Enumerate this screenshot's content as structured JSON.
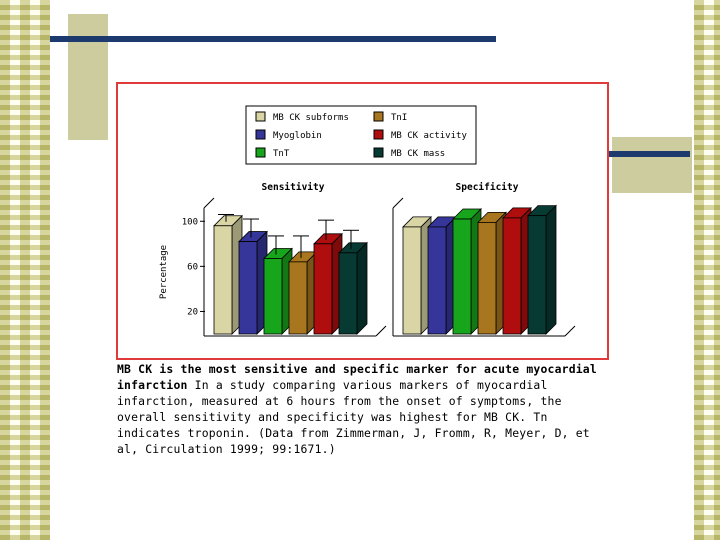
{
  "slide": {
    "caption_title": "MB CK is the most sensitive and specific marker for acute myocardial infarction",
    "caption_body": "In a study comparing various markers of myocardial infarction, measured at 6 hours from the onset of symptoms, the overall sensitivity and specificity was highest for MB CK. Tn indicates troponin. (Data from Zimmerman, J, Fromm, R, Meyer, D, et al, Circulation 1999; 99:1671.)"
  },
  "chart_data": {
    "type": "bar",
    "ylabel": "Percentage",
    "y_ticks": [
      20,
      60,
      100
    ],
    "ylim": [
      0,
      110
    ],
    "legend_position": "top-center",
    "series": [
      {
        "name": "MB CK subforms",
        "color": "#d9d5a5"
      },
      {
        "name": "TnI",
        "color": "#a7761e"
      },
      {
        "name": "Myoglobin",
        "color": "#36369a"
      },
      {
        "name": "MB CK activity",
        "color": "#b00e0e"
      },
      {
        "name": "TnT",
        "color": "#17a61b"
      },
      {
        "name": "MB CK mass",
        "color": "#073a33"
      }
    ],
    "groups": [
      {
        "label": "Sensitivity",
        "bars": [
          {
            "series": "MB CK subforms",
            "value": 96,
            "error": 10
          },
          {
            "series": "Myoglobin",
            "value": 82,
            "error": 20
          },
          {
            "series": "TnT",
            "value": 67,
            "error": 20
          },
          {
            "series": "TnI",
            "value": 64,
            "error": 23
          },
          {
            "series": "MB CK activity",
            "value": 80,
            "error": 21
          },
          {
            "series": "MB CK mass",
            "value": 72,
            "error": 20
          }
        ]
      },
      {
        "label": "Specificity",
        "bars": [
          {
            "series": "MB CK subforms",
            "value": 95
          },
          {
            "series": "Myoglobin",
            "value": 95
          },
          {
            "series": "TnT",
            "value": 102
          },
          {
            "series": "TnI",
            "value": 99
          },
          {
            "series": "MB CK activity",
            "value": 103
          },
          {
            "series": "MB CK mass",
            "value": 105
          }
        ]
      }
    ]
  }
}
